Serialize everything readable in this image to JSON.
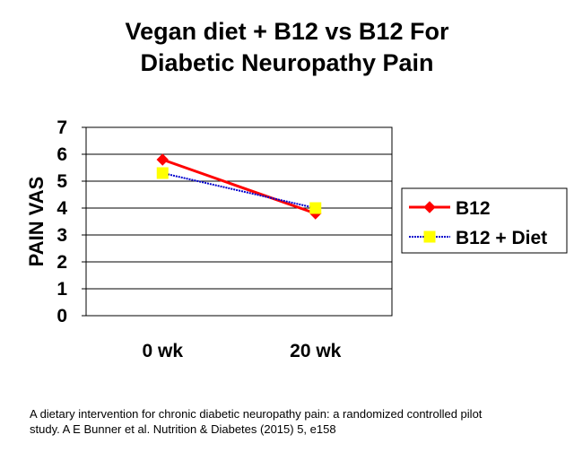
{
  "title_line1": "Vegan diet + B12 vs  B12 For",
  "title_line2": "Diabetic Neuropathy Pain",
  "footnote_line1": "A dietary intervention for chronic diabetic neuropathy pain: a randomized controlled pilot",
  "footnote_line2": "study. A E Bunner et al. Nutrition & Diabetes (2015) 5, e158",
  "chart_data": {
    "type": "line",
    "title": "Vegan diet + B12 vs  B12 For Diabetic Neuropathy Pain",
    "xlabel": "",
    "ylabel": "PAIN VAS",
    "categories": [
      "0 wk",
      "20 wk"
    ],
    "ylim": [
      0,
      7
    ],
    "yticks": [
      "0",
      "1",
      "2",
      "3",
      "4",
      "5",
      "6",
      "7"
    ],
    "grid": true,
    "legend": "right",
    "series": [
      {
        "name": "B12",
        "values": [
          5.8,
          3.8
        ],
        "color": "#ff0000",
        "marker": "diamond"
      },
      {
        "name": "B12 + Diet",
        "values": [
          5.3,
          4.0
        ],
        "color": "#0000cc",
        "marker": "square",
        "marker_color": "#ffff00"
      }
    ]
  }
}
